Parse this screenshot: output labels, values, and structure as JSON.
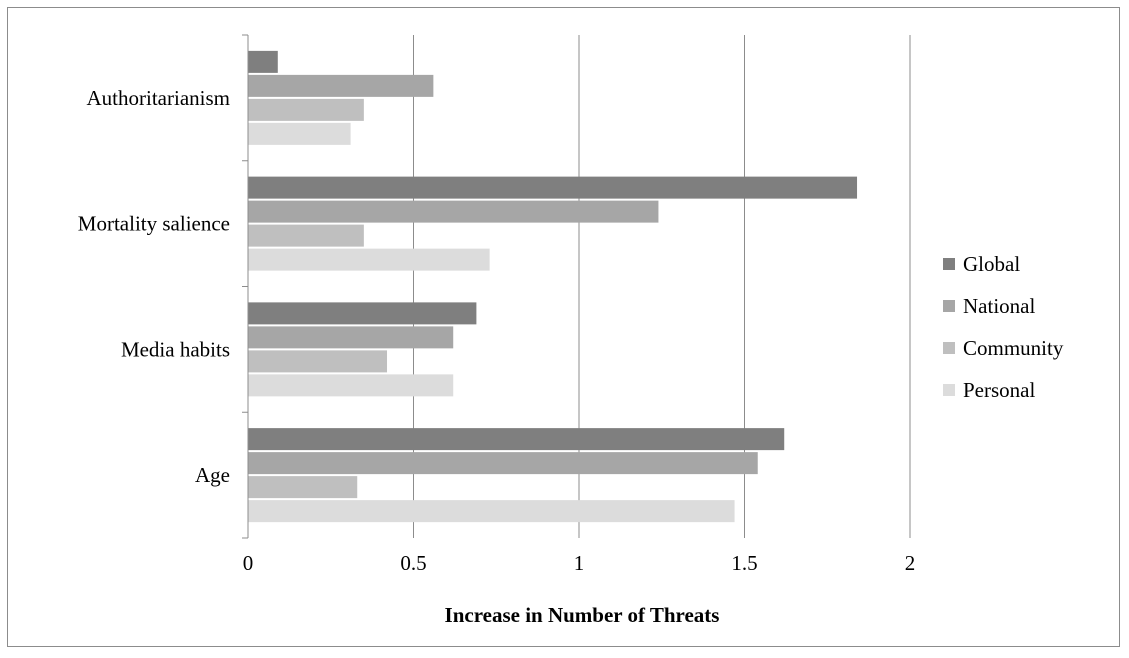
{
  "chart_data": {
    "type": "bar",
    "orientation": "horizontal",
    "categories": [
      "Age",
      "Media habits",
      "Mortality salience",
      "Authoritarianism"
    ],
    "series": [
      {
        "name": "Global",
        "values": [
          1.62,
          0.69,
          1.84,
          0.09
        ],
        "color": "#7f7f7f"
      },
      {
        "name": "National",
        "values": [
          1.54,
          0.62,
          1.24,
          0.56
        ],
        "color": "#a6a6a6"
      },
      {
        "name": "Community",
        "values": [
          0.33,
          0.42,
          0.35,
          0.35
        ],
        "color": "#bfbfbf"
      },
      {
        "name": "Personal",
        "values": [
          1.47,
          0.62,
          0.73,
          0.31
        ],
        "color": "#dcdcdc"
      }
    ],
    "xlabel": "Increase in Number of Threats",
    "ylabel": "",
    "title": "",
    "xlim": [
      0,
      2
    ],
    "xticks": [
      0,
      0.5,
      1,
      1.5,
      2
    ],
    "xtick_labels": [
      "0",
      "0.5",
      "1",
      "1.5",
      "2"
    ],
    "grid": "vertical major gridlines",
    "legend_position": "right"
  }
}
